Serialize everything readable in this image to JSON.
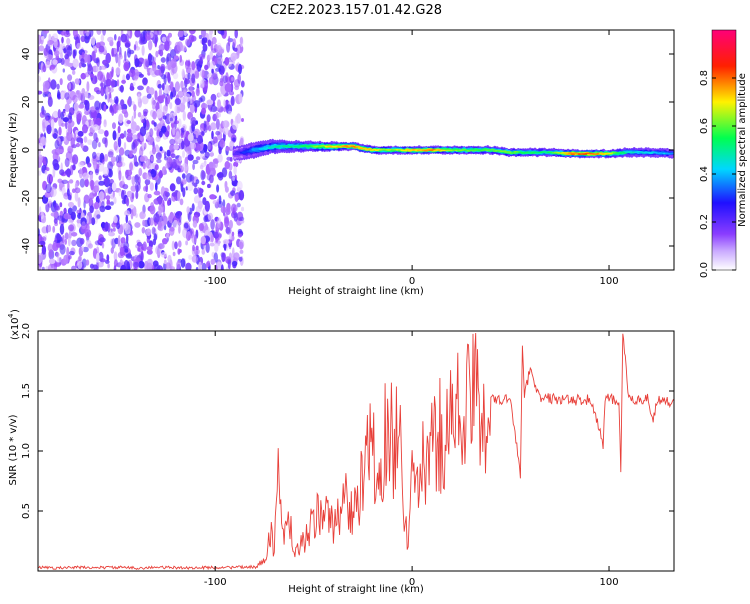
{
  "title": "C2E2.2023.157.01.42.G28",
  "colors": {
    "snr_line": "#e8403a",
    "background": "#ffffff",
    "axis": "#000000"
  },
  "chart_data": [
    {
      "type": "heatmap",
      "xlabel": "Height of straight line (km)",
      "ylabel": "Frequency (Hz)",
      "xlim": [
        -190,
        133
      ],
      "ylim": [
        -50,
        50
      ],
      "x_ticks": [
        -100,
        0,
        100
      ],
      "y_ticks": [
        -40,
        -20,
        0,
        20,
        40
      ],
      "colorbar": {
        "label": "Normalized spectral amplitude",
        "range": [
          0,
          1
        ],
        "ticks": [
          "0.0",
          "0.2",
          "0.4",
          "0.6",
          "0.8"
        ],
        "tick_values": [
          0.0,
          0.2,
          0.4,
          0.6,
          0.8
        ],
        "colormap": [
          "#ffffff",
          "#9c4dff",
          "#2010ff",
          "#00d7ff",
          "#00ff50",
          "#fff200",
          "#ff2000",
          "#ff0078"
        ]
      },
      "noise_region_x": [
        -190,
        -86
      ],
      "signal_ridge": {
        "x": [
          -90,
          -80,
          -70,
          -60,
          -50,
          -40,
          -30,
          -20,
          -10,
          0,
          10,
          20,
          30,
          40,
          50,
          60,
          70,
          80,
          90,
          100,
          110,
          120,
          133
        ],
        "frequency_hz": [
          -1.5,
          0,
          1.5,
          1.5,
          1.5,
          1.5,
          1.5,
          0,
          0,
          0,
          0,
          0,
          0,
          0,
          -1,
          -1,
          -1,
          -1.5,
          -1.5,
          -1.5,
          -1,
          -1,
          -1.5
        ],
        "amplitude": [
          0.25,
          0.45,
          0.55,
          0.6,
          0.7,
          0.85,
          0.9,
          0.8,
          0.75,
          0.85,
          0.9,
          0.75,
          0.7,
          0.7,
          0.72,
          0.65,
          0.62,
          0.9,
          0.95,
          0.8,
          0.55,
          0.5,
          0.45
        ],
        "width_hz": [
          6,
          7,
          6,
          5,
          4.5,
          4,
          3.5,
          3.5,
          3.5,
          3.5,
          3.5,
          3.5,
          3.5,
          3.5,
          3.5,
          3.5,
          3.5,
          3.5,
          3.5,
          3.5,
          4,
          4,
          4
        ]
      }
    },
    {
      "type": "line",
      "xlabel": "Height of straight line (km)",
      "ylabel": "SNR (10 * v/v)",
      "y_multiplier": "(x10^4)",
      "y_multiplier_base": "(x10",
      "y_multiplier_exp": "4",
      "xlim": [
        -190,
        133
      ],
      "ylim": [
        0,
        20000
      ],
      "x_ticks": [
        -100,
        0,
        100
      ],
      "y_ticks": [
        5000,
        10000,
        15000,
        20000
      ],
      "y_tick_labels": [
        "0.5",
        "1.0",
        "1.5",
        "2.0"
      ],
      "series": [
        {
          "x": [
            -190,
            -180,
            -170,
            -160,
            -150,
            -140,
            -130,
            -120,
            -110,
            -100,
            -90,
            -80,
            -75,
            -72,
            -70,
            -68,
            -65,
            -62,
            -60,
            -55,
            -50,
            -45,
            -40,
            -35,
            -30,
            -25,
            -20,
            -18,
            -15,
            -12,
            -10,
            -8,
            -6,
            -4,
            -2,
            0,
            5,
            10,
            15,
            20,
            25,
            30,
            35,
            40,
            45,
            50,
            55,
            56,
            57,
            60,
            65,
            70,
            80,
            90,
            95,
            97,
            98,
            100,
            105,
            106,
            107,
            110,
            115,
            120,
            122,
            125,
            130,
            133
          ],
          "y": [
            300,
            250,
            300,
            280,
            300,
            250,
            300,
            280,
            260,
            300,
            300,
            350,
            800,
            3500,
            1500,
            8500,
            2500,
            4000,
            1200,
            2500,
            4000,
            5500,
            3500,
            6500,
            4500,
            7500,
            11000,
            6000,
            9500,
            13000,
            10500,
            11500,
            12000,
            5000,
            2000,
            7000,
            8500,
            10000,
            11500,
            12500,
            13500,
            14000,
            14200,
            14300,
            14200,
            14400,
            8000,
            18500,
            14500,
            17000,
            14300,
            14400,
            14200,
            14300,
            12000,
            10500,
            14200,
            14400,
            14000,
            8500,
            20000,
            14200,
            14300,
            14400,
            12500,
            14300,
            14100,
            14200
          ]
        }
      ]
    }
  ]
}
